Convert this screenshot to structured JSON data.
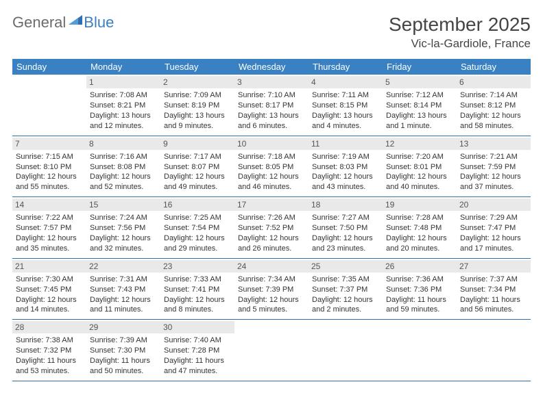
{
  "logo": {
    "general": "General",
    "blue": "Blue"
  },
  "header": {
    "month_title": "September 2025",
    "location": "Vic-la-Gardiole, France"
  },
  "colors": {
    "header_bg": "#3a81c4",
    "header_text": "#ffffff",
    "daynum_bg": "#e9e9e9",
    "row_border": "#2f6fa8",
    "logo_gray": "#6b6b6b",
    "logo_blue": "#3a7fc4"
  },
  "weekdays": [
    "Sunday",
    "Monday",
    "Tuesday",
    "Wednesday",
    "Thursday",
    "Friday",
    "Saturday"
  ],
  "weeks": [
    [
      null,
      {
        "num": "1",
        "sunrise": "Sunrise: 7:08 AM",
        "sunset": "Sunset: 8:21 PM",
        "daylight1": "Daylight: 13 hours",
        "daylight2": "and 12 minutes."
      },
      {
        "num": "2",
        "sunrise": "Sunrise: 7:09 AM",
        "sunset": "Sunset: 8:19 PM",
        "daylight1": "Daylight: 13 hours",
        "daylight2": "and 9 minutes."
      },
      {
        "num": "3",
        "sunrise": "Sunrise: 7:10 AM",
        "sunset": "Sunset: 8:17 PM",
        "daylight1": "Daylight: 13 hours",
        "daylight2": "and 6 minutes."
      },
      {
        "num": "4",
        "sunrise": "Sunrise: 7:11 AM",
        "sunset": "Sunset: 8:15 PM",
        "daylight1": "Daylight: 13 hours",
        "daylight2": "and 4 minutes."
      },
      {
        "num": "5",
        "sunrise": "Sunrise: 7:12 AM",
        "sunset": "Sunset: 8:14 PM",
        "daylight1": "Daylight: 13 hours",
        "daylight2": "and 1 minute."
      },
      {
        "num": "6",
        "sunrise": "Sunrise: 7:14 AM",
        "sunset": "Sunset: 8:12 PM",
        "daylight1": "Daylight: 12 hours",
        "daylight2": "and 58 minutes."
      }
    ],
    [
      {
        "num": "7",
        "sunrise": "Sunrise: 7:15 AM",
        "sunset": "Sunset: 8:10 PM",
        "daylight1": "Daylight: 12 hours",
        "daylight2": "and 55 minutes."
      },
      {
        "num": "8",
        "sunrise": "Sunrise: 7:16 AM",
        "sunset": "Sunset: 8:08 PM",
        "daylight1": "Daylight: 12 hours",
        "daylight2": "and 52 minutes."
      },
      {
        "num": "9",
        "sunrise": "Sunrise: 7:17 AM",
        "sunset": "Sunset: 8:07 PM",
        "daylight1": "Daylight: 12 hours",
        "daylight2": "and 49 minutes."
      },
      {
        "num": "10",
        "sunrise": "Sunrise: 7:18 AM",
        "sunset": "Sunset: 8:05 PM",
        "daylight1": "Daylight: 12 hours",
        "daylight2": "and 46 minutes."
      },
      {
        "num": "11",
        "sunrise": "Sunrise: 7:19 AM",
        "sunset": "Sunset: 8:03 PM",
        "daylight1": "Daylight: 12 hours",
        "daylight2": "and 43 minutes."
      },
      {
        "num": "12",
        "sunrise": "Sunrise: 7:20 AM",
        "sunset": "Sunset: 8:01 PM",
        "daylight1": "Daylight: 12 hours",
        "daylight2": "and 40 minutes."
      },
      {
        "num": "13",
        "sunrise": "Sunrise: 7:21 AM",
        "sunset": "Sunset: 7:59 PM",
        "daylight1": "Daylight: 12 hours",
        "daylight2": "and 37 minutes."
      }
    ],
    [
      {
        "num": "14",
        "sunrise": "Sunrise: 7:22 AM",
        "sunset": "Sunset: 7:57 PM",
        "daylight1": "Daylight: 12 hours",
        "daylight2": "and 35 minutes."
      },
      {
        "num": "15",
        "sunrise": "Sunrise: 7:24 AM",
        "sunset": "Sunset: 7:56 PM",
        "daylight1": "Daylight: 12 hours",
        "daylight2": "and 32 minutes."
      },
      {
        "num": "16",
        "sunrise": "Sunrise: 7:25 AM",
        "sunset": "Sunset: 7:54 PM",
        "daylight1": "Daylight: 12 hours",
        "daylight2": "and 29 minutes."
      },
      {
        "num": "17",
        "sunrise": "Sunrise: 7:26 AM",
        "sunset": "Sunset: 7:52 PM",
        "daylight1": "Daylight: 12 hours",
        "daylight2": "and 26 minutes."
      },
      {
        "num": "18",
        "sunrise": "Sunrise: 7:27 AM",
        "sunset": "Sunset: 7:50 PM",
        "daylight1": "Daylight: 12 hours",
        "daylight2": "and 23 minutes."
      },
      {
        "num": "19",
        "sunrise": "Sunrise: 7:28 AM",
        "sunset": "Sunset: 7:48 PM",
        "daylight1": "Daylight: 12 hours",
        "daylight2": "and 20 minutes."
      },
      {
        "num": "20",
        "sunrise": "Sunrise: 7:29 AM",
        "sunset": "Sunset: 7:47 PM",
        "daylight1": "Daylight: 12 hours",
        "daylight2": "and 17 minutes."
      }
    ],
    [
      {
        "num": "21",
        "sunrise": "Sunrise: 7:30 AM",
        "sunset": "Sunset: 7:45 PM",
        "daylight1": "Daylight: 12 hours",
        "daylight2": "and 14 minutes."
      },
      {
        "num": "22",
        "sunrise": "Sunrise: 7:31 AM",
        "sunset": "Sunset: 7:43 PM",
        "daylight1": "Daylight: 12 hours",
        "daylight2": "and 11 minutes."
      },
      {
        "num": "23",
        "sunrise": "Sunrise: 7:33 AM",
        "sunset": "Sunset: 7:41 PM",
        "daylight1": "Daylight: 12 hours",
        "daylight2": "and 8 minutes."
      },
      {
        "num": "24",
        "sunrise": "Sunrise: 7:34 AM",
        "sunset": "Sunset: 7:39 PM",
        "daylight1": "Daylight: 12 hours",
        "daylight2": "and 5 minutes."
      },
      {
        "num": "25",
        "sunrise": "Sunrise: 7:35 AM",
        "sunset": "Sunset: 7:37 PM",
        "daylight1": "Daylight: 12 hours",
        "daylight2": "and 2 minutes."
      },
      {
        "num": "26",
        "sunrise": "Sunrise: 7:36 AM",
        "sunset": "Sunset: 7:36 PM",
        "daylight1": "Daylight: 11 hours",
        "daylight2": "and 59 minutes."
      },
      {
        "num": "27",
        "sunrise": "Sunrise: 7:37 AM",
        "sunset": "Sunset: 7:34 PM",
        "daylight1": "Daylight: 11 hours",
        "daylight2": "and 56 minutes."
      }
    ],
    [
      {
        "num": "28",
        "sunrise": "Sunrise: 7:38 AM",
        "sunset": "Sunset: 7:32 PM",
        "daylight1": "Daylight: 11 hours",
        "daylight2": "and 53 minutes."
      },
      {
        "num": "29",
        "sunrise": "Sunrise: 7:39 AM",
        "sunset": "Sunset: 7:30 PM",
        "daylight1": "Daylight: 11 hours",
        "daylight2": "and 50 minutes."
      },
      {
        "num": "30",
        "sunrise": "Sunrise: 7:40 AM",
        "sunset": "Sunset: 7:28 PM",
        "daylight1": "Daylight: 11 hours",
        "daylight2": "and 47 minutes."
      },
      null,
      null,
      null,
      null
    ]
  ]
}
